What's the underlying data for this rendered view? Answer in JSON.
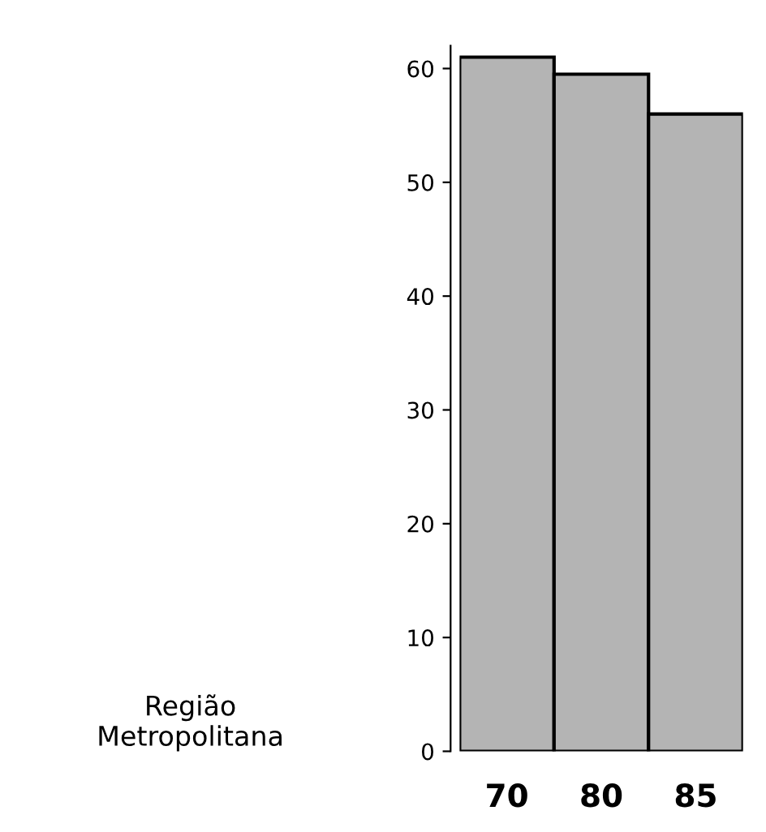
{
  "chart_data": {
    "type": "bar",
    "ylabel": "Região\nMetropolitana",
    "categories": [
      "70",
      "80",
      "85"
    ],
    "values": [
      61,
      59.5,
      56
    ],
    "color": "#b4b4b4",
    "ylim": [
      0,
      62
    ],
    "yticks": [
      0,
      10,
      20,
      30,
      40,
      50,
      60
    ],
    "grid": false,
    "legend": false
  }
}
